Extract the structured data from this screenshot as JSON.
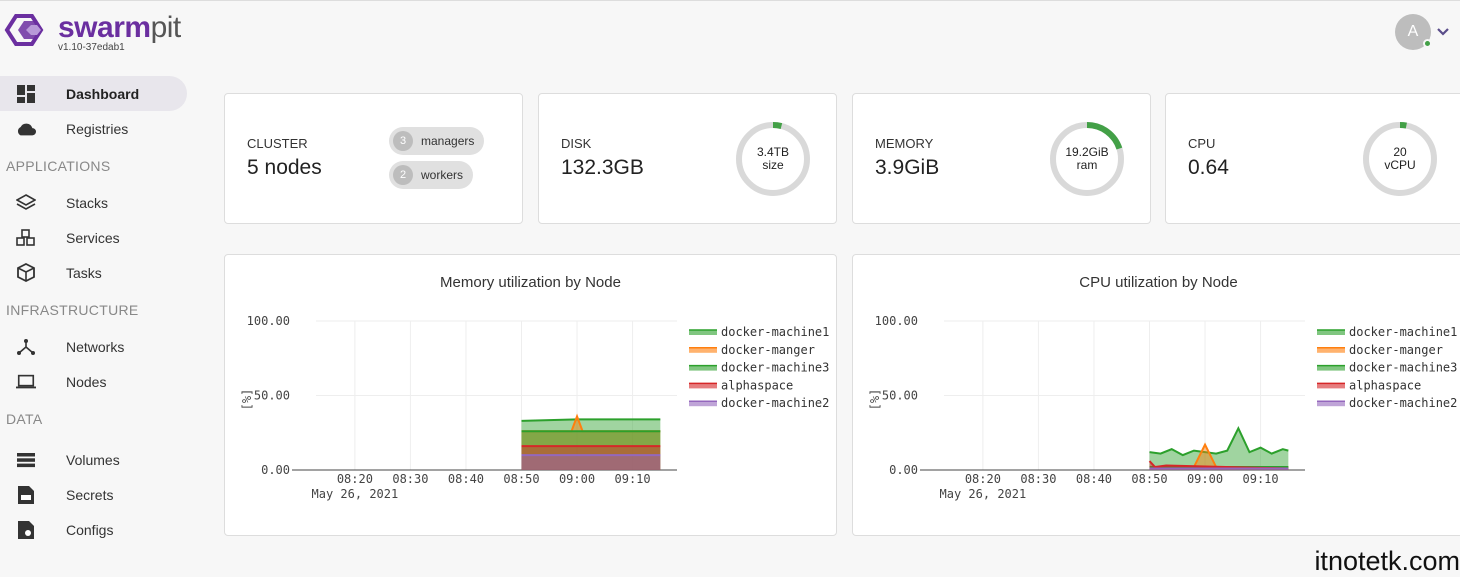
{
  "app": {
    "name_bold": "swarm",
    "name_light": "pit",
    "version": "v1.10-37edab1"
  },
  "user": {
    "initial": "A"
  },
  "sidebar": {
    "dashboard": "Dashboard",
    "registries": "Registries",
    "sec_applications": "APPLICATIONS",
    "stacks": "Stacks",
    "services": "Services",
    "tasks": "Tasks",
    "sec_infrastructure": "INFRASTRUCTURE",
    "networks": "Networks",
    "nodes": "Nodes",
    "sec_data": "DATA",
    "volumes": "Volumes",
    "secrets": "Secrets",
    "configs": "Configs"
  },
  "stats": {
    "cluster": {
      "label": "CLUSTER",
      "value": "5 nodes",
      "managers_count": "3",
      "managers_label": "managers",
      "workers_count": "2",
      "workers_label": "workers"
    },
    "disk": {
      "label": "DISK",
      "value": "132.3GB",
      "gauge_line1": "3.4TB",
      "gauge_line2": "size",
      "usage": 0.04
    },
    "memory": {
      "label": "MEMORY",
      "value": "3.9GiB",
      "gauge_line1": "19.2GiB",
      "gauge_line2": "ram",
      "usage": 0.2
    },
    "cpu": {
      "label": "CPU",
      "value": "0.64",
      "gauge_line1": "20",
      "gauge_line2": "vCPU",
      "usage": 0.03
    }
  },
  "charts": {
    "memory_title": "Memory utilization by Node",
    "cpu_title": "CPU utilization by Node"
  },
  "chart_data": [
    {
      "type": "area",
      "title": "Memory utilization by Node",
      "ylabel": "[%]",
      "ylim": [
        0,
        100
      ],
      "yticks": [
        "0.00",
        "50.00",
        "100.00"
      ],
      "xticks": [
        "08:20",
        "08:30",
        "08:40",
        "08:50",
        "09:00",
        "09:10"
      ],
      "xdate": "May 26, 2021",
      "grid": true,
      "legend": "right",
      "series": [
        {
          "name": "docker-machine1",
          "color": "#2ca02c",
          "x": [
            "08:50",
            "09:00",
            "09:05",
            "09:10",
            "09:15"
          ],
          "values": [
            33,
            34,
            34,
            34,
            34
          ]
        },
        {
          "name": "docker-manger",
          "color": "#ff7f0e",
          "x": [
            "08:50",
            "08:59",
            "09:00",
            "09:01",
            "09:10",
            "09:15"
          ],
          "values": [
            26,
            26,
            36,
            26,
            26,
            26
          ]
        },
        {
          "name": "docker-machine3",
          "color": "#2ca02c",
          "x": [
            "08:50",
            "09:15"
          ],
          "values": [
            26,
            26
          ]
        },
        {
          "name": "alphaspace",
          "color": "#d62728",
          "x": [
            "08:50",
            "09:15"
          ],
          "values": [
            16,
            16
          ]
        },
        {
          "name": "docker-machine2",
          "color": "#9467bd",
          "x": [
            "08:50",
            "09:15"
          ],
          "values": [
            10,
            10
          ]
        }
      ]
    },
    {
      "type": "area",
      "title": "CPU utilization by Node",
      "ylabel": "[%]",
      "ylim": [
        0,
        100
      ],
      "yticks": [
        "0.00",
        "50.00",
        "100.00"
      ],
      "xticks": [
        "08:20",
        "08:30",
        "08:40",
        "08:50",
        "09:00",
        "09:10"
      ],
      "xdate": "May 26, 2021",
      "grid": true,
      "legend": "right",
      "series": [
        {
          "name": "docker-machine1",
          "color": "#2ca02c",
          "x": [
            "08:50",
            "08:52",
            "08:54",
            "08:56",
            "08:58",
            "09:00",
            "09:02",
            "09:04",
            "09:06",
            "09:08",
            "09:10",
            "09:12",
            "09:14",
            "09:15"
          ],
          "values": [
            12,
            11,
            14,
            10,
            13,
            12,
            11,
            13,
            28,
            12,
            15,
            11,
            14,
            13
          ]
        },
        {
          "name": "docker-manger",
          "color": "#ff7f0e",
          "x": [
            "08:50",
            "08:58",
            "09:00",
            "09:02",
            "09:15"
          ],
          "values": [
            2,
            2,
            17,
            2,
            2
          ]
        },
        {
          "name": "docker-machine3",
          "color": "#2ca02c",
          "x": [
            "08:50",
            "09:15"
          ],
          "values": [
            2,
            2
          ]
        },
        {
          "name": "alphaspace",
          "color": "#d62728",
          "x": [
            "08:50",
            "08:51",
            "08:53",
            "09:15"
          ],
          "values": [
            6,
            2,
            3,
            1
          ]
        },
        {
          "name": "docker-machine2",
          "color": "#9467bd",
          "x": [
            "08:50",
            "09:15"
          ],
          "values": [
            1,
            1
          ]
        }
      ]
    }
  ],
  "watermark": "itnotetk.com"
}
